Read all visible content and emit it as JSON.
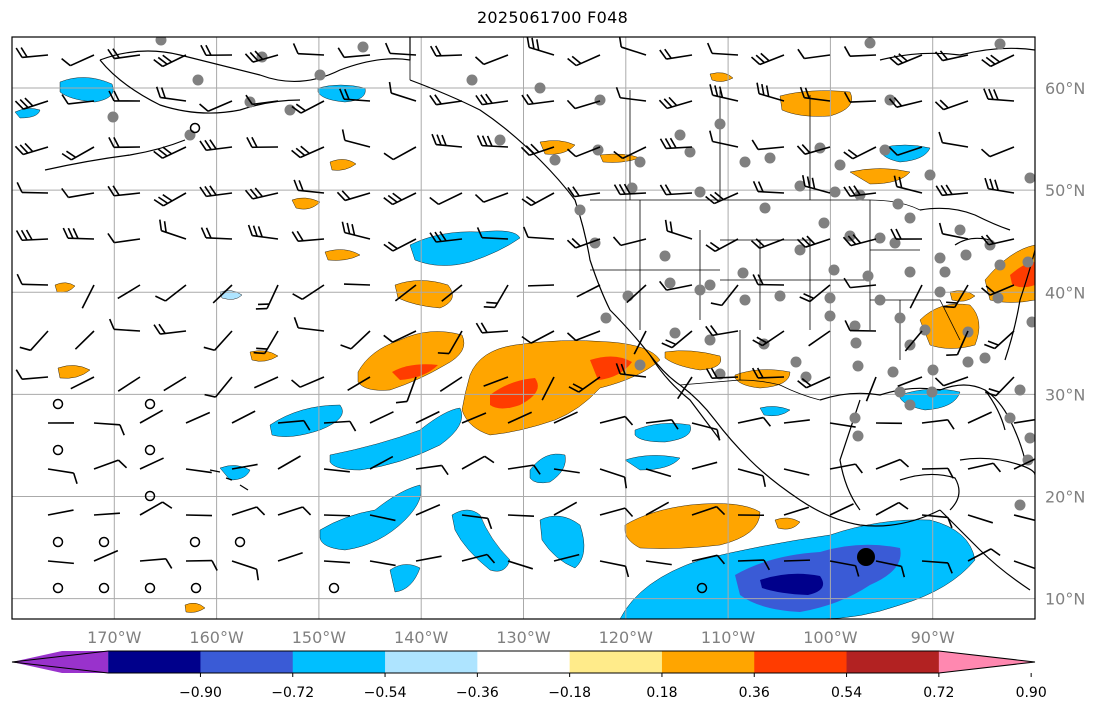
{
  "title": "2025061700 F048",
  "map": {
    "lon_range": [
      -180,
      -80
    ],
    "lat_range": [
      8,
      65
    ],
    "lon_labels": [
      "170°W",
      "160°W",
      "150°W",
      "140°W",
      "130°W",
      "120°W",
      "110°W",
      "100°W",
      "90°W"
    ],
    "lat_labels": [
      "10°N",
      "20°N",
      "30°N",
      "40°N",
      "50°N",
      "60°N"
    ],
    "gridline_color": "#aaaaaa",
    "land_color": "#ffffff",
    "coastline_color": "#000000"
  },
  "colorbar": {
    "tick_labels": [
      "−0.90",
      "−0.72",
      "−0.54",
      "−0.36",
      "−0.18",
      "0.18",
      "0.36",
      "0.54",
      "0.72",
      "0.90"
    ],
    "colors": [
      "#9932cc",
      "#00008b",
      "#3a5bd6",
      "#00bfff",
      "#aee4ff",
      "#ffffff",
      "#ffeb8a",
      "#ffa500",
      "#ff3c00",
      "#b22222",
      "#ff88b0"
    ],
    "extend": "both"
  },
  "contour_colors": {
    "neg_strong": "#3a5bd6",
    "neg_darkest": "#00008b",
    "neg_mid": "#00bfff",
    "neg_light": "#aee4ff",
    "pos_light": "#ffeb8a",
    "pos_mid": "#ffa500",
    "pos_strong": "#ff3c00"
  },
  "station_color": "#808080",
  "marker": {
    "name": "current-location",
    "lon": -96.5,
    "lat": 14
  }
}
